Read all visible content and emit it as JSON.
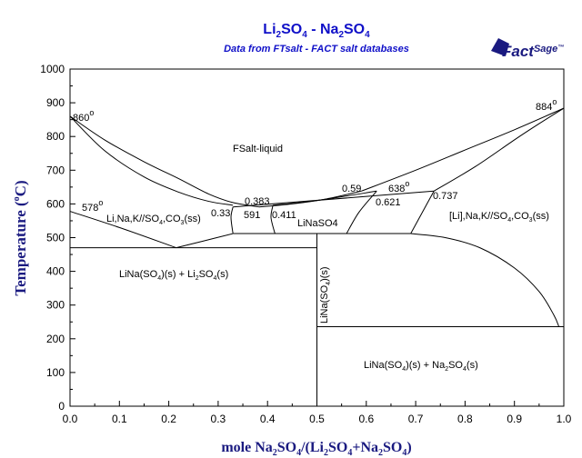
{
  "chart_data": {
    "type": "line",
    "title": "Li2SO4 - Na2SO4",
    "title_parts": {
      "a": "Li",
      "b": "2",
      "c": "SO",
      "d": "4",
      "e": " - Na",
      "f": "2",
      "g": "SO",
      "h": "4"
    },
    "subtitle": "Data from FTsalt - FACT salt databases",
    "logo": {
      "text": "FactSage",
      "main": "Fact",
      "sub": "Sage",
      "tm": "™"
    },
    "xlabel_parts": {
      "a": "mole Na",
      "b": "2",
      "c": "SO",
      "d": "4",
      "e": "/(Li",
      "f": "2",
      "g": "SO",
      "h": "4",
      "i": "+Na",
      "j": "2",
      "k": "SO",
      "l": "4",
      "m": ")"
    },
    "ylabel_parts": {
      "a": "Temperature (",
      "b": "o",
      "c": "C)"
    },
    "xlim": [
      0,
      1
    ],
    "ylim": [
      0,
      1000
    ],
    "xticks": [
      "0.0",
      "0.1",
      "0.2",
      "0.3",
      "0.4",
      "0.5",
      "0.6",
      "0.7",
      "0.8",
      "0.9",
      "1.0"
    ],
    "yticks": [
      "0",
      "100",
      "200",
      "300",
      "400",
      "500",
      "600",
      "700",
      "800",
      "900",
      "1000"
    ],
    "grid": false,
    "regions": {
      "liquid": "FSalt-liquid",
      "lnaso4": "LiNaSO4",
      "li_ss": {
        "a": "Li,Na,K//SO",
        "b": "4",
        "c": ",CO",
        "d": "3",
        "e": "(ss)"
      },
      "na_ss": {
        "a": "[Li],Na,K//SO",
        "b": "4",
        "c": ",CO",
        "d": "3",
        "e": "(ss)"
      },
      "left_low": {
        "a": "LiNa(SO",
        "b": "4",
        "c": ")(s) + Li",
        "d": "2",
        "e": "SO",
        "f": "4",
        "g": "(s)"
      },
      "right_low": {
        "a": "LiNa(SO",
        "b": "4",
        "c": ")(s) + Na",
        "d": "2",
        "e": "SO",
        "f": "4",
        "g": "(s)"
      },
      "vertical": {
        "a": "LiNa(SO",
        "b": "4",
        "c": ")(s)"
      }
    },
    "temps": {
      "t860": {
        "v": "860",
        "d": "o"
      },
      "t578": {
        "v": "578",
        "d": "o"
      },
      "t884": {
        "v": "884",
        "d": "o"
      },
      "t638": {
        "v": "638",
        "d": "o"
      },
      "t591": "591"
    },
    "compositions": [
      "0.383",
      "0.33",
      "0.411",
      "0.59",
      "0.621",
      "0.737"
    ],
    "series": [
      {
        "points": [
          [
            0,
            860
          ],
          [
            0.07,
            790
          ],
          [
            0.15,
            725
          ],
          [
            0.22,
            675
          ],
          [
            0.28,
            630
          ],
          [
            0.33,
            604
          ],
          [
            0.383,
            591
          ]
        ]
      },
      {
        "points": [
          [
            0,
            860
          ],
          [
            0.07,
            758
          ],
          [
            0.15,
            680
          ],
          [
            0.22,
            635
          ],
          [
            0.28,
            608
          ],
          [
            0.33,
            596
          ]
        ]
      },
      {
        "points": [
          [
            0.383,
            591
          ],
          [
            0.45,
            600
          ],
          [
            0.52,
            615
          ],
          [
            0.59,
            638
          ]
        ]
      },
      {
        "points": [
          [
            0.411,
            596
          ],
          [
            0.5,
            610
          ],
          [
            0.621,
            638
          ]
        ]
      },
      {
        "points": [
          [
            0.59,
            638
          ],
          [
            0.7,
            700
          ],
          [
            0.8,
            760
          ],
          [
            0.9,
            820
          ],
          [
            1.0,
            884
          ]
        ]
      },
      {
        "points": [
          [
            0.737,
            638
          ],
          [
            0.82,
            710
          ],
          [
            0.9,
            790
          ],
          [
            0.95,
            838
          ],
          [
            1.0,
            884
          ]
        ]
      },
      {
        "points": [
          [
            0,
            578
          ],
          [
            0.1,
            530
          ],
          [
            0.2,
            478
          ],
          [
            0.215,
            470
          ]
        ]
      },
      {
        "points": [
          [
            0.215,
            470
          ],
          [
            0.27,
            490
          ],
          [
            0.33,
            512
          ]
        ]
      },
      {
        "points": [
          [
            0,
            470
          ],
          [
            0.5,
            470
          ]
        ]
      },
      {
        "points": [
          [
            0.33,
            591
          ],
          [
            0.737,
            638
          ]
        ]
      },
      {
        "points": [
          [
            0.33,
            591
          ],
          [
            0.326,
            560
          ],
          [
            0.33,
            512
          ]
        ]
      },
      {
        "points": [
          [
            0.411,
            596
          ],
          [
            0.407,
            560
          ],
          [
            0.415,
            512
          ]
        ]
      },
      {
        "points": [
          [
            0.33,
            512
          ],
          [
            0.5,
            512
          ]
        ]
      },
      {
        "points": [
          [
            0.415,
            512
          ],
          [
            0.5,
            512
          ]
        ]
      },
      {
        "points": [
          [
            0.5,
            512
          ],
          [
            0.69,
            512
          ]
        ]
      },
      {
        "points": [
          [
            0.56,
            512
          ],
          [
            0.585,
            575
          ],
          [
            0.621,
            638
          ]
        ]
      },
      {
        "points": [
          [
            0.69,
            512
          ],
          [
            0.737,
            638
          ]
        ]
      },
      {
        "points": [
          [
            0.69,
            512
          ],
          [
            0.76,
            500
          ],
          [
            0.83,
            470
          ],
          [
            0.9,
            410
          ],
          [
            0.95,
            340
          ],
          [
            0.98,
            270
          ],
          [
            0.99,
            236
          ]
        ]
      },
      {
        "points": [
          [
            0.5,
            0
          ],
          [
            0.5,
            512
          ]
        ]
      },
      {
        "points": [
          [
            0.5,
            236
          ],
          [
            1.0,
            236
          ]
        ]
      },
      {
        "points": [
          [
            1.0,
            0
          ],
          [
            1.0,
            1000
          ]
        ]
      }
    ]
  }
}
